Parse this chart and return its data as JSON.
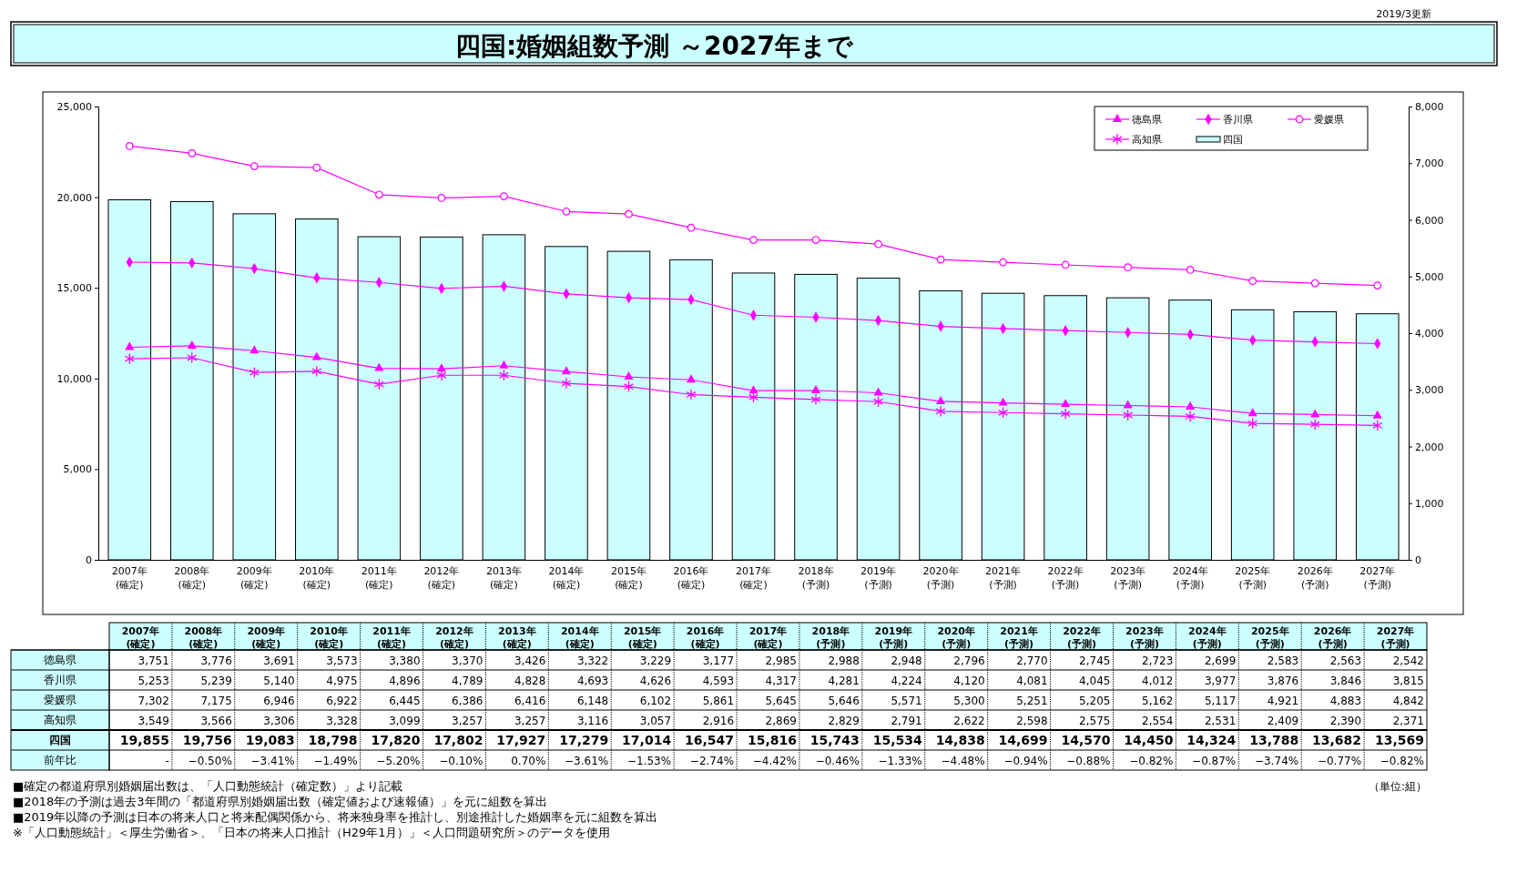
{
  "chart_data": {
    "type": "bar",
    "title": "四国:婚姻組数予測 ～2027年まで",
    "categories": [
      "2007年\n(確定)",
      "2008年\n(確定)",
      "2009年\n(確定)",
      "2010年\n(確定)",
      "2011年\n(確定)",
      "2012年\n(確定)",
      "2013年\n(確定)",
      "2014年\n(確定)",
      "2015年\n(確定)",
      "2016年\n(確定)",
      "2017年\n(確定)",
      "2018年\n(予測)",
      "2019年\n(予測)",
      "2020年\n(予測)",
      "2021年\n(予測)",
      "2022年\n(予測)",
      "2023年\n(予測)",
      "2024年\n(予測)",
      "2025年\n(予測)",
      "2026年\n(予測)",
      "2027年\n(予測)"
    ],
    "series": [
      {
        "name": "徳島県",
        "type": "line",
        "axis": "y2",
        "color": "#ff00ff",
        "marker": "triangle",
        "values": [
          3751,
          3776,
          3691,
          3573,
          3380,
          3370,
          3426,
          3322,
          3229,
          3177,
          2985,
          2988,
          2948,
          2796,
          2770,
          2745,
          2723,
          2699,
          2583,
          2563,
          2542
        ],
        "value_labels": [
          "3,751",
          "3,776",
          "3,691",
          "3,573",
          "3,380",
          "3,370",
          "3,426",
          "3,322",
          "3,229",
          "3,177",
          "2,985",
          "2,988",
          "2,948",
          "2,796",
          "2,770",
          "2,745",
          "2,723",
          "2,699",
          "2,583",
          "2,563",
          "2,542"
        ]
      },
      {
        "name": "香川県",
        "type": "line",
        "axis": "y2",
        "color": "#ff00ff",
        "marker": "diamond",
        "values": [
          5253,
          5239,
          5140,
          4975,
          4896,
          4789,
          4828,
          4693,
          4626,
          4593,
          4317,
          4281,
          4224,
          4120,
          4081,
          4045,
          4012,
          3977,
          3876,
          3846,
          3815
        ],
        "value_labels": [
          "5,253",
          "5,239",
          "5,140",
          "4,975",
          "4,896",
          "4,789",
          "4,828",
          "4,693",
          "4,626",
          "4,593",
          "4,317",
          "4,281",
          "4,224",
          "4,120",
          "4,081",
          "4,045",
          "4,012",
          "3,977",
          "3,876",
          "3,846",
          "3,815"
        ]
      },
      {
        "name": "愛媛県",
        "type": "line",
        "axis": "y2",
        "color": "#ff00ff",
        "marker": "circle",
        "values": [
          7302,
          7175,
          6946,
          6922,
          6445,
          6386,
          6416,
          6148,
          6102,
          5861,
          5645,
          5646,
          5571,
          5300,
          5251,
          5205,
          5162,
          5117,
          4921,
          4883,
          4842
        ],
        "value_labels": [
          "7,302",
          "7,175",
          "6,946",
          "6,922",
          "6,445",
          "6,386",
          "6,416",
          "6,148",
          "6,102",
          "5,861",
          "5,645",
          "5,646",
          "5,571",
          "5,300",
          "5,251",
          "5,205",
          "5,162",
          "5,117",
          "4,921",
          "4,883",
          "4,842"
        ]
      },
      {
        "name": "高知県",
        "type": "line",
        "axis": "y2",
        "color": "#ff00ff",
        "marker": "cross",
        "values": [
          3549,
          3566,
          3306,
          3328,
          3099,
          3257,
          3257,
          3116,
          3057,
          2916,
          2869,
          2829,
          2791,
          2622,
          2598,
          2575,
          2554,
          2531,
          2409,
          2390,
          2371
        ],
        "value_labels": [
          "3,549",
          "3,566",
          "3,306",
          "3,328",
          "3,099",
          "3,257",
          "3,257",
          "3,116",
          "3,057",
          "2,916",
          "2,869",
          "2,829",
          "2,791",
          "2,622",
          "2,598",
          "2,575",
          "2,554",
          "2,531",
          "2,409",
          "2,390",
          "2,371"
        ]
      },
      {
        "name": "四国",
        "color": "#ccffff",
        "values": [
          19855,
          19756,
          19083,
          18798,
          17820,
          17802,
          17927,
          17279,
          17014,
          16547,
          15816,
          15743,
          15534,
          14838,
          14699,
          14570,
          14450,
          14324,
          13788,
          13682,
          13569
        ],
        "value_labels": [
          "19,855",
          "19,756",
          "19,083",
          "18,798",
          "17,820",
          "17,802",
          "17,927",
          "17,279",
          "17,014",
          "16,547",
          "15,816",
          "15,743",
          "15,534",
          "14,838",
          "14,699",
          "14,570",
          "14,450",
          "14,324",
          "13,788",
          "13,682",
          "13,569"
        ]
      },
      {
        "name": "前年比",
        "type": "other",
        "values": [
          null,
          null,
          null,
          null,
          null,
          null,
          null,
          null,
          null,
          null,
          null,
          null,
          null,
          null,
          null,
          null,
          null,
          null,
          null,
          null,
          null
        ],
        "value_labels": [
          "-",
          "−0.50%",
          "−3.41%",
          "−1.49%",
          "−5.20%",
          "−0.10%",
          "0.70%",
          "−3.61%",
          "−1.53%",
          "−2.74%",
          "−4.42%",
          "−0.46%",
          "−1.33%",
          "−4.48%",
          "−0.94%",
          "−0.88%",
          "−0.82%",
          "−0.87%",
          "−3.74%",
          "−0.77%",
          "−0.82%"
        ]
      }
    ],
    "ylim": [
      0,
      25000
    ],
    "yticks": [
      {
        "value": 0,
        "label": "0"
      },
      {
        "value": 5000,
        "label": "5,000"
      },
      {
        "value": 10000,
        "label": "10,000"
      },
      {
        "value": 15000,
        "label": "15,000"
      },
      {
        "value": 20000,
        "label": "20,000"
      },
      {
        "value": 25000,
        "label": "25,000"
      }
    ],
    "y2lim": [
      0,
      8000
    ],
    "y2ticks": [
      {
        "value": 0,
        "label": "0"
      },
      {
        "value": 1000,
        "label": "1,000"
      },
      {
        "value": 2000,
        "label": "2,000"
      },
      {
        "value": 3000,
        "label": "3,000"
      },
      {
        "value": 4000,
        "label": "4,000"
      },
      {
        "value": 5000,
        "label": "5,000"
      },
      {
        "value": 6000,
        "label": "6,000"
      },
      {
        "value": 7000,
        "label": "7,000"
      },
      {
        "value": 8000,
        "label": "8,000"
      }
    ],
    "legend": "top right",
    "grid": false,
    "annotations": [
      "2019/3更新",
      "（単位:組）",
      "■確定の都道府県別婚姻届出数は、「人口動態統計（確定数）」より記載",
      "■2018年の予測は過去3年間の「都道府県別婚姻届出数（確定値および速報値）」を元に組数を算出",
      "■2019年以降の予測は日本の将来人口と将来配偶関係から、将来独身率を推計し、別途推計した婚姻率を元に組数を算出",
      "※「人口動態統計」＜厚生労働省＞、「日本の将来人口推計（H29年1月）」＜人口問題研究所＞のデータを使用"
    ]
  }
}
